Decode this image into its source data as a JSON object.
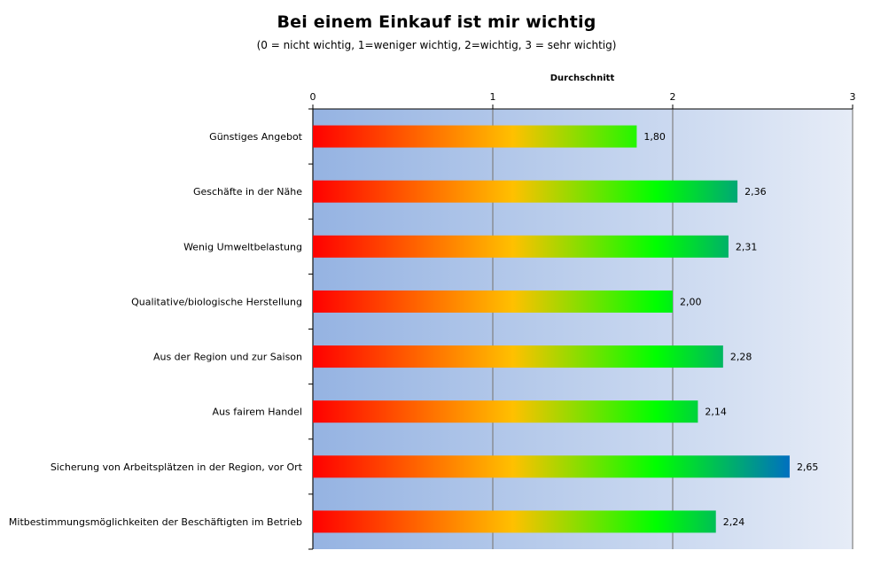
{
  "chart_data": {
    "type": "bar",
    "orientation": "horizontal",
    "title": "Bei einem Einkauf ist mir wichtig",
    "subtitle": "(0 = nicht wichtig, 1=weniger wichtig, 2=wichtig, 3 = sehr wichtig)",
    "xlabel": "Durchschnitt",
    "xlim": [
      0,
      3
    ],
    "xticks": [
      "0",
      "1",
      "2",
      "3"
    ],
    "axis_position": "top",
    "grid": true,
    "categories": [
      "Günstiges Angebot",
      "Geschäfte in der Nähe",
      "Wenig Umweltbelastung",
      "Qualitative/biologische Herstellung",
      "Aus der Region und zur Saison",
      "Aus fairem Handel",
      "Sicherung von Arbeitsplätzen in der Region,  vor Ort",
      "Mitbestimmungsmöglichkeiten der Beschäftigten im Betrieb"
    ],
    "values": [
      1.8,
      2.36,
      2.31,
      2.0,
      2.28,
      2.14,
      2.65,
      2.24
    ],
    "value_labels": [
      "1,80",
      "2,36",
      "2,31",
      "2,00",
      "2,28",
      "2,14",
      "2,65",
      "2,24"
    ],
    "colors": {
      "gradient": [
        "#ff0000",
        "#ffc000",
        "#00ff00",
        "#0070c0"
      ],
      "plot_background_left": "#95b3e2",
      "plot_background_right": "#e6ecf7",
      "gridline": "#808080"
    }
  }
}
